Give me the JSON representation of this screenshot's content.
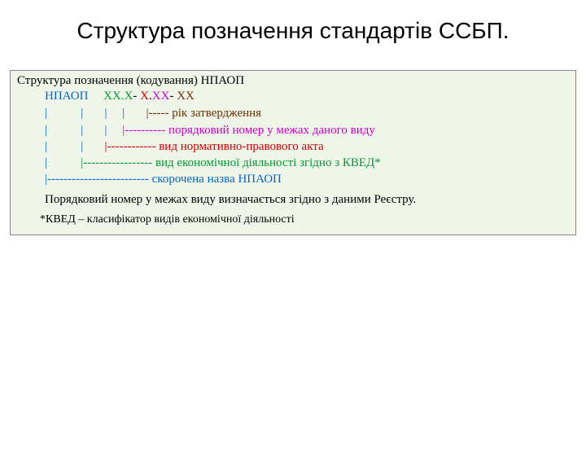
{
  "title": "Структура позначення стандартів ССБП.",
  "box": {
    "bg_color": "#f0f5ea",
    "border_color": "#888888",
    "header": "Структура позначення (кодування) НПАОП",
    "code": {
      "label": "НПАОП",
      "seg1": "XX.X",
      "sep1": "- ",
      "seg2": "X",
      "dot": ".",
      "seg3": "XX",
      "sep2": "- ",
      "seg4": "XX"
    },
    "pointers": [
      {
        "bars": "|           |       |     |       ",
        "dash": "|----- ",
        "text": "рік затвердження",
        "dash_color": "#663300",
        "text_color": "#663300"
      },
      {
        "bars": "|           |       |     ",
        "dash": "|---------- ",
        "text": "порядковий номер у межах даного виду",
        "dash_color": "#cc00cc",
        "text_color": "#cc00cc"
      },
      {
        "bars": "|           |       ",
        "dash": "|------------ ",
        "text": "вид нормативно-правового акта",
        "dash_color": "#cc0000",
        "text_color": "#cc0000"
      },
      {
        "bars": "|           ",
        "dash": "|----------------- ",
        "text": "вид економічної діяльності згідно з КВЕД*",
        "dash_color": "#009933",
        "text_color": "#009933"
      },
      {
        "bars": "",
        "dash": "|------------------------- ",
        "text": "скорочена назва НПАОП",
        "dash_color": "#0066cc",
        "text_color": "#0066cc"
      }
    ],
    "body": "Порядковий номер у межах виду визначається згідно з даними Реєстру.",
    "footnote": "*КВЕД – класифікатор видів економічної діяльності"
  },
  "colors": {
    "npaop_label": "#0066cc",
    "seg1": "#009933",
    "seg2": "#cc0000",
    "seg3": "#cc00cc",
    "seg4": "#663300",
    "bar": "#0066cc",
    "title_color": "#222222",
    "body_color": "#000000"
  }
}
